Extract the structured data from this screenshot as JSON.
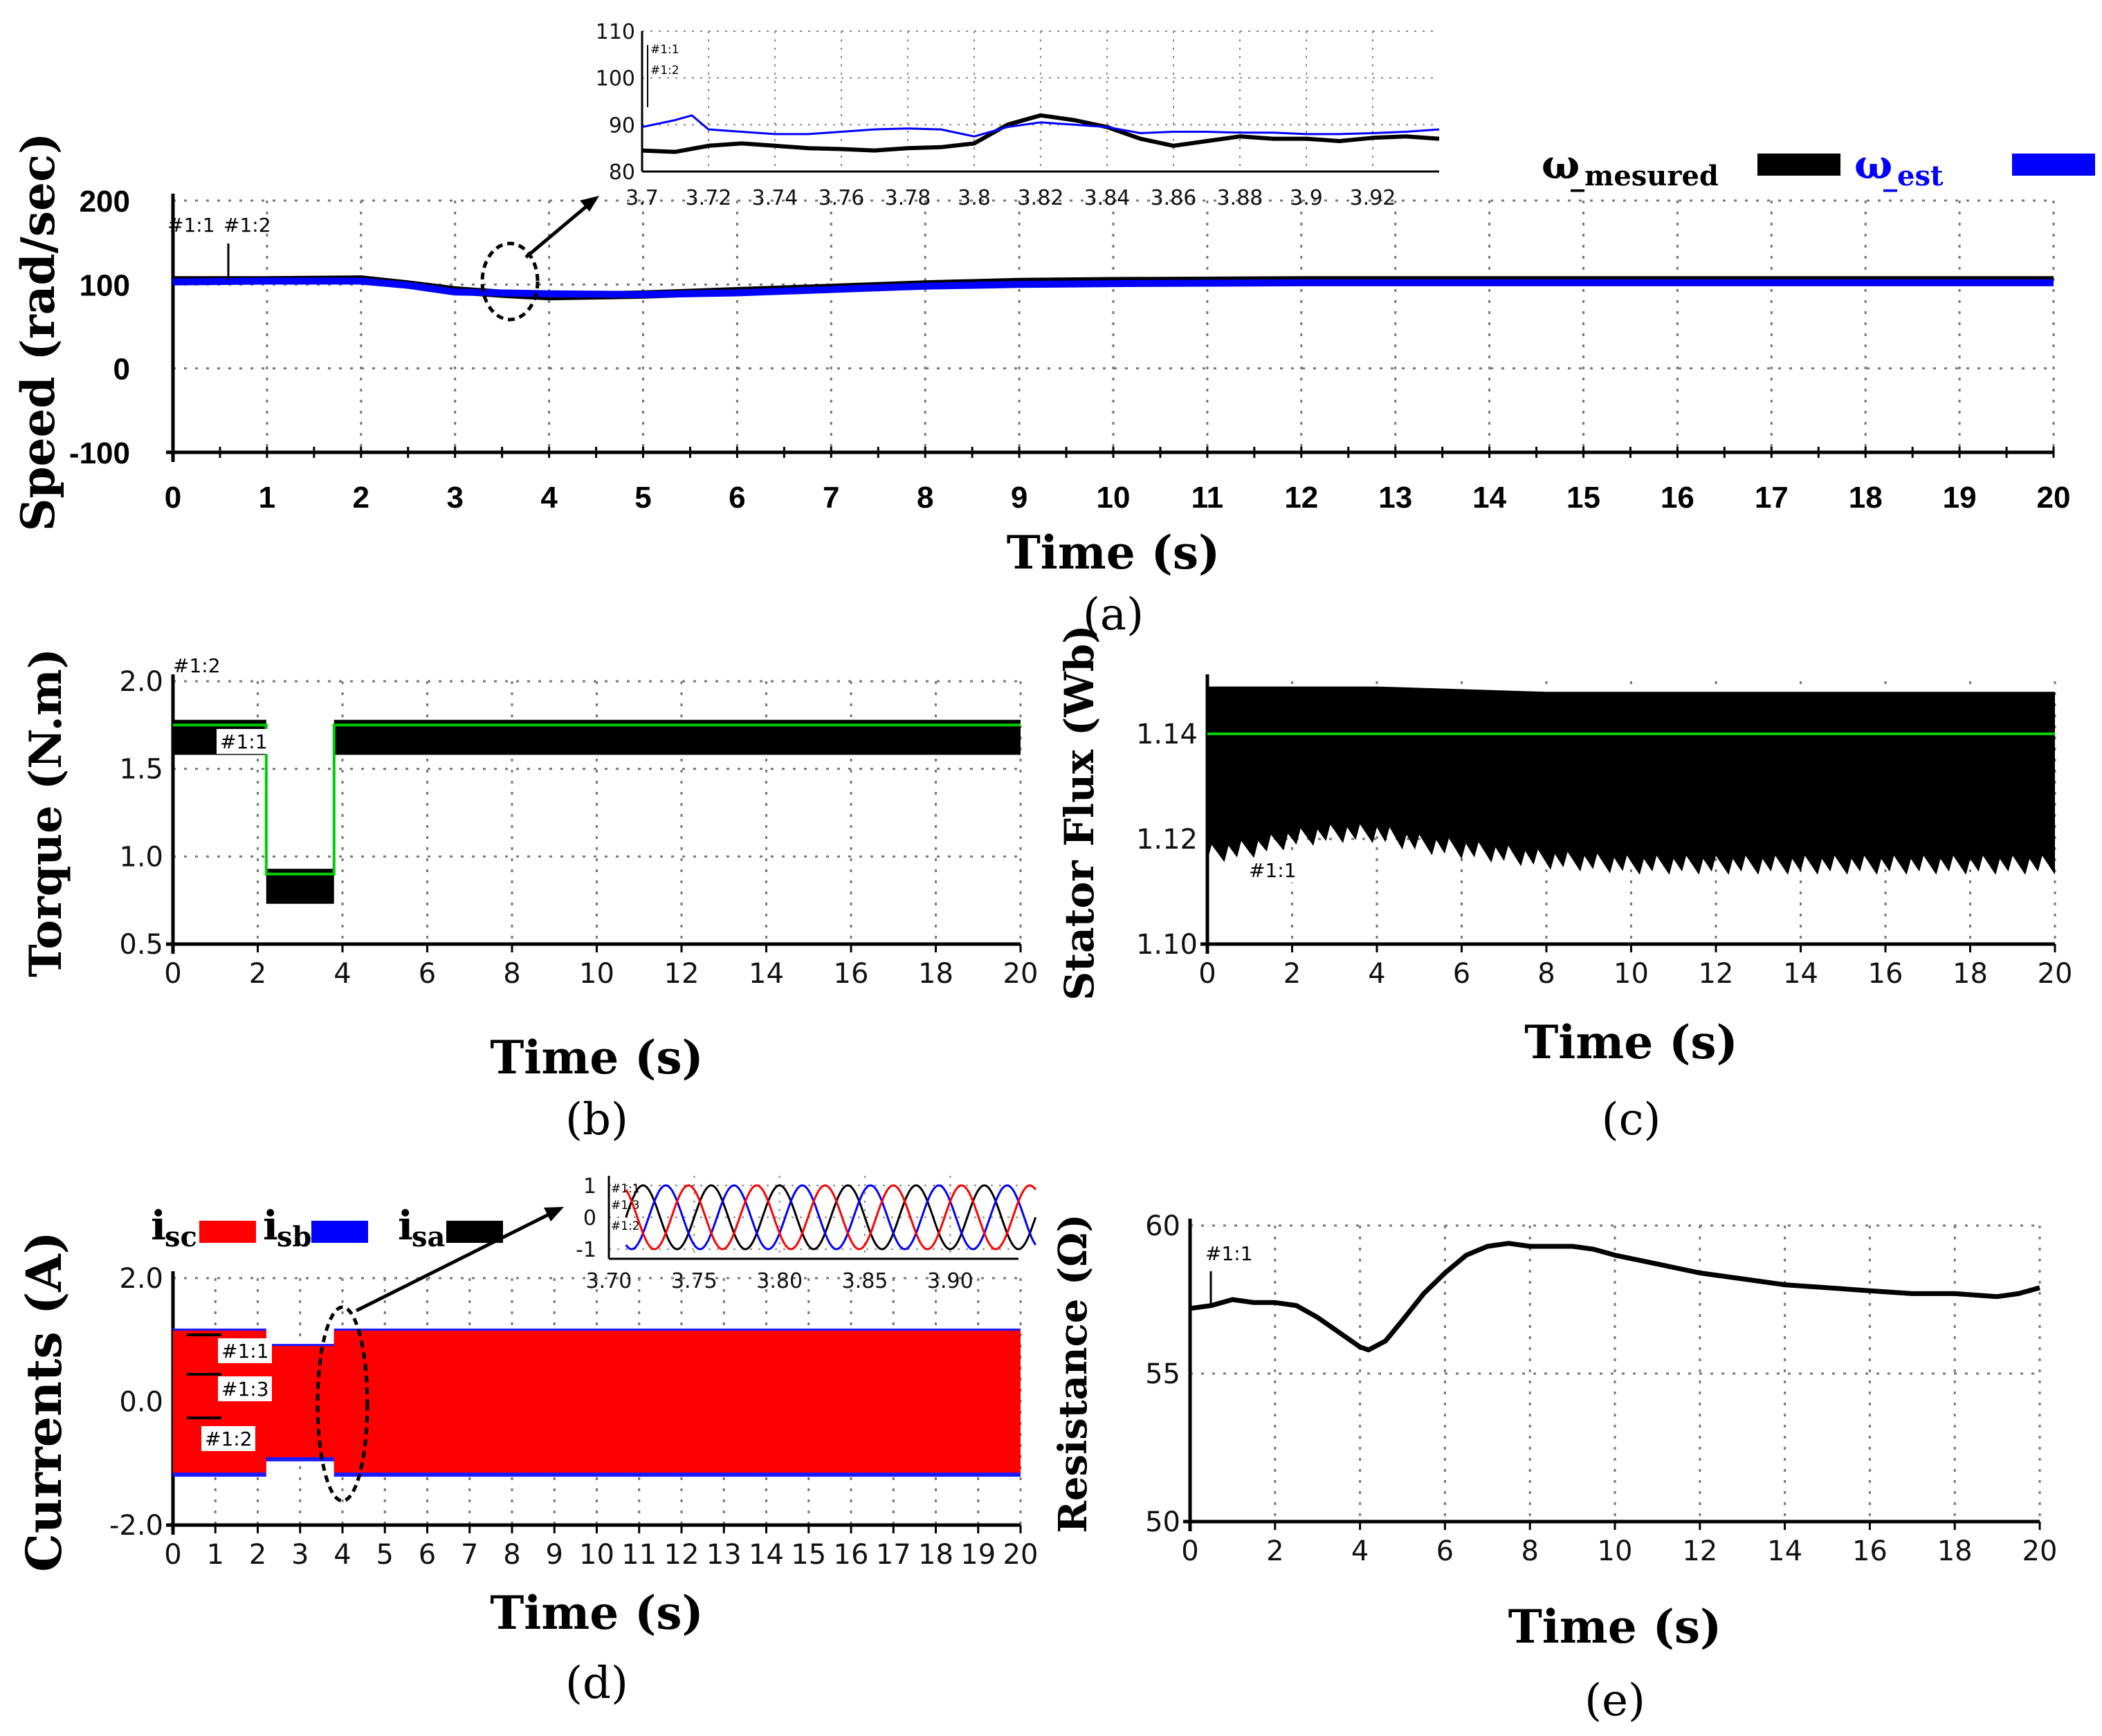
{
  "chart_data": [
    {
      "id": "a",
      "type": "line",
      "caption": "(a)",
      "xlabel": "Time (s)",
      "ylabel": "Speed (rad/sec)",
      "xlim": [
        0,
        20
      ],
      "ylim": [
        -100,
        200
      ],
      "xticks": [
        0,
        1,
        2,
        3,
        4,
        5,
        6,
        7,
        8,
        9,
        10,
        11,
        12,
        13,
        14,
        15,
        16,
        17,
        18,
        19,
        20
      ],
      "yticks": [
        -100,
        0,
        100,
        200
      ],
      "markers": [
        "#1:1",
        "#1:2"
      ],
      "legend": [
        {
          "label": "ω",
          "sub": "_mesured",
          "color": "#000000"
        },
        {
          "label": "ω",
          "sub": "_est",
          "color": "#0000ff"
        }
      ],
      "series": [
        {
          "name": "ω_mesured",
          "color": "#000000",
          "x": [
            0,
            1,
            2,
            2.5,
            3,
            3.5,
            4,
            5,
            6,
            7,
            8,
            9,
            10,
            12,
            14,
            16,
            18,
            20
          ],
          "y": [
            105,
            105,
            106,
            100,
            93,
            89,
            86,
            88,
            92,
            96,
            100,
            103,
            104,
            105,
            105,
            105,
            105,
            105
          ]
        },
        {
          "name": "ω_est",
          "color": "#0000ff",
          "x": [
            0,
            1,
            2,
            2.5,
            3,
            3.5,
            4,
            5,
            6,
            7,
            8,
            9,
            10,
            12,
            14,
            16,
            18,
            20
          ],
          "y": [
            103,
            104,
            104,
            99,
            91,
            90,
            89,
            88,
            90,
            94,
            98,
            100,
            101,
            102,
            102,
            102,
            102,
            102
          ]
        }
      ],
      "inset": {
        "xlim": [
          3.7,
          3.94
        ],
        "ylim": [
          80,
          110
        ],
        "xticks": [
          3.7,
          3.72,
          3.74,
          3.76,
          3.78,
          3.8,
          3.82,
          3.84,
          3.86,
          3.88,
          3.9,
          3.92
        ],
        "yticks": [
          80,
          90,
          100,
          110
        ],
        "markers": [
          "#1:1",
          "#1:2"
        ],
        "series": [
          {
            "name": "ω_mesured",
            "color": "#000000",
            "x": [
              3.7,
              3.71,
              3.72,
              3.73,
              3.74,
              3.75,
              3.76,
              3.77,
              3.78,
              3.79,
              3.8,
              3.81,
              3.82,
              3.83,
              3.84,
              3.85,
              3.86,
              3.87,
              3.88,
              3.89,
              3.9,
              3.91,
              3.92,
              3.93,
              3.94
            ],
            "y": [
              84.5,
              84.2,
              85.5,
              86,
              85.5,
              85,
              84.8,
              84.5,
              85,
              85.2,
              86,
              90,
              92,
              91,
              89.5,
              87,
              85.5,
              86.5,
              87.5,
              87,
              87,
              86.5,
              87.2,
              87.5,
              87
            ]
          },
          {
            "name": "ω_est",
            "color": "#0000ff",
            "x": [
              3.7,
              3.71,
              3.715,
              3.72,
              3.73,
              3.74,
              3.75,
              3.76,
              3.77,
              3.78,
              3.79,
              3.8,
              3.81,
              3.82,
              3.83,
              3.84,
              3.85,
              3.86,
              3.87,
              3.88,
              3.89,
              3.9,
              3.91,
              3.92,
              3.93,
              3.94
            ],
            "y": [
              89.5,
              91,
              92,
              89,
              88.5,
              88,
              88,
              88.5,
              89,
              89.2,
              89,
              87.5,
              89.5,
              90.5,
              90,
              89.5,
              88.2,
              88.5,
              88.5,
              88.3,
              88.3,
              88,
              88,
              88.2,
              88.5,
              89
            ]
          }
        ]
      }
    },
    {
      "id": "b",
      "type": "line",
      "caption": "(b)",
      "xlabel": "Time (s)",
      "ylabel": "Torque (N.m)",
      "xlim": [
        0,
        20
      ],
      "ylim": [
        0.5,
        2.0
      ],
      "xticks": [
        0,
        2,
        4,
        6,
        8,
        10,
        12,
        14,
        16,
        18,
        20
      ],
      "yticks": [
        "0.5",
        "1.0",
        "1.5",
        "2.0"
      ],
      "markers": [
        "#1:2",
        "#1:1"
      ],
      "series": [
        {
          "name": "torque reference",
          "color": "#00cc00",
          "x": [
            0,
            2.2,
            2.2,
            3.8,
            3.8,
            20
          ],
          "y": [
            1.75,
            1.75,
            0.9,
            0.9,
            1.75,
            1.75
          ]
        },
        {
          "name": "torque band upper",
          "color": "#000000",
          "x": [
            0,
            2.2,
            2.2,
            3.8,
            3.8,
            20
          ],
          "y": [
            1.78,
            1.78,
            0.93,
            0.93,
            1.78,
            1.78
          ]
        },
        {
          "name": "torque band lower",
          "color": "#000000",
          "x": [
            0,
            2.2,
            2.2,
            3.8,
            3.8,
            20
          ],
          "y": [
            1.58,
            1.58,
            0.73,
            0.73,
            1.58,
            1.58
          ]
        }
      ]
    },
    {
      "id": "c",
      "type": "line",
      "caption": "(c)",
      "xlabel": "Time (s)",
      "ylabel": "Stator Flux (Wb)",
      "xlim": [
        0,
        20
      ],
      "ylim": [
        1.1,
        1.15
      ],
      "xticks": [
        0,
        2,
        4,
        6,
        8,
        10,
        12,
        14,
        16,
        18,
        20
      ],
      "yticks": [
        "1.10",
        "1.12",
        "1.14"
      ],
      "markers": [
        "#1:2",
        "#1:1"
      ],
      "series": [
        {
          "name": "flux reference",
          "color": "#00cc00",
          "x": [
            0,
            20
          ],
          "y": [
            1.14,
            1.14
          ]
        },
        {
          "name": "flux upper envelope",
          "color": "#000000",
          "x": [
            0,
            4,
            8,
            12,
            16,
            20
          ],
          "y": [
            1.149,
            1.149,
            1.148,
            1.148,
            1.148,
            1.148
          ]
        },
        {
          "name": "flux lower envelope",
          "color": "#000000",
          "x": [
            0,
            1,
            2,
            3,
            4,
            5,
            6,
            7,
            8,
            10,
            12,
            14,
            16,
            18,
            20
          ],
          "y": [
            1.117,
            1.118,
            1.12,
            1.121,
            1.121,
            1.119,
            1.118,
            1.117,
            1.116,
            1.115,
            1.115,
            1.115,
            1.115,
            1.115,
            1.115
          ]
        }
      ]
    },
    {
      "id": "d",
      "type": "line",
      "caption": "(d)",
      "xlabel": "Time (s)",
      "ylabel": "Currents (A)",
      "xlim": [
        0,
        20
      ],
      "ylim": [
        -2.0,
        2.0
      ],
      "xticks": [
        0,
        1,
        2,
        3,
        4,
        5,
        6,
        7,
        8,
        9,
        10,
        11,
        12,
        13,
        14,
        15,
        16,
        17,
        18,
        19,
        20
      ],
      "yticks": [
        "-2.0",
        "0.0",
        "2.0"
      ],
      "markers": [
        "#1:1",
        "#1:3",
        "#1:2"
      ],
      "legend": [
        {
          "label": "i",
          "sub": "sc",
          "color": "#ff0000"
        },
        {
          "label": "i",
          "sub": "sb",
          "color": "#0000ff"
        },
        {
          "label": "i",
          "sub": "sa",
          "color": "#000000"
        }
      ],
      "series": [
        {
          "name": "current envelope upper",
          "color": "#ff0000",
          "x": [
            0,
            2.2,
            2.2,
            3.8,
            3.8,
            20
          ],
          "y": [
            1.15,
            1.15,
            0.9,
            0.9,
            1.15,
            1.15
          ]
        },
        {
          "name": "current envelope lower",
          "color": "#ff0000",
          "x": [
            0,
            2.2,
            2.2,
            3.8,
            3.8,
            20
          ],
          "y": [
            -1.15,
            -1.15,
            -0.9,
            -0.9,
            -1.15,
            -1.15
          ]
        }
      ],
      "inset": {
        "xlim": [
          3.7,
          3.94
        ],
        "ylim": [
          -1.3,
          1.3
        ],
        "xticks": [
          "3.70",
          "3.75",
          "3.80",
          "3.85",
          "3.90"
        ],
        "yticks": [
          "-1",
          "0",
          "1"
        ],
        "markers": [
          "#1:1",
          "#1:3",
          "#1:2"
        ],
        "series": [
          {
            "name": "i_sa",
            "color": "#000000",
            "amplitude": 1.0,
            "phase_deg": 0
          },
          {
            "name": "i_sb",
            "color": "#0000ff",
            "amplitude": 1.0,
            "phase_deg": -120
          },
          {
            "name": "i_sc",
            "color": "#ff0000",
            "amplitude": 1.0,
            "phase_deg": 120
          }
        ]
      }
    },
    {
      "id": "e",
      "type": "line",
      "caption": "(e)",
      "xlabel": "Time (s)",
      "ylabel": "Resistance (Ω)",
      "xlim": [
        0,
        20
      ],
      "ylim": [
        50,
        60
      ],
      "xticks": [
        0,
        2,
        4,
        6,
        8,
        10,
        12,
        14,
        16,
        18,
        20
      ],
      "yticks": [
        50,
        55,
        60
      ],
      "markers": [
        "#1:1"
      ],
      "series": [
        {
          "name": "resistance estimate",
          "color": "#000000",
          "x": [
            0,
            0.5,
            1,
            1.5,
            2,
            2.5,
            3,
            3.5,
            4,
            4.2,
            4.6,
            5,
            5.5,
            6,
            6.5,
            7,
            7.5,
            8,
            8.5,
            9,
            9.5,
            10,
            11,
            12,
            13,
            14,
            15,
            16,
            17,
            18,
            19,
            19.5,
            20
          ],
          "y": [
            57.2,
            57.3,
            57.5,
            57.4,
            57.4,
            57.3,
            56.9,
            56.4,
            55.9,
            55.8,
            56.1,
            56.8,
            57.7,
            58.4,
            59.0,
            59.3,
            59.4,
            59.3,
            59.3,
            59.3,
            59.2,
            59.0,
            58.7,
            58.4,
            58.2,
            58.0,
            57.9,
            57.8,
            57.7,
            57.7,
            57.6,
            57.7,
            57.9
          ]
        }
      ]
    }
  ]
}
